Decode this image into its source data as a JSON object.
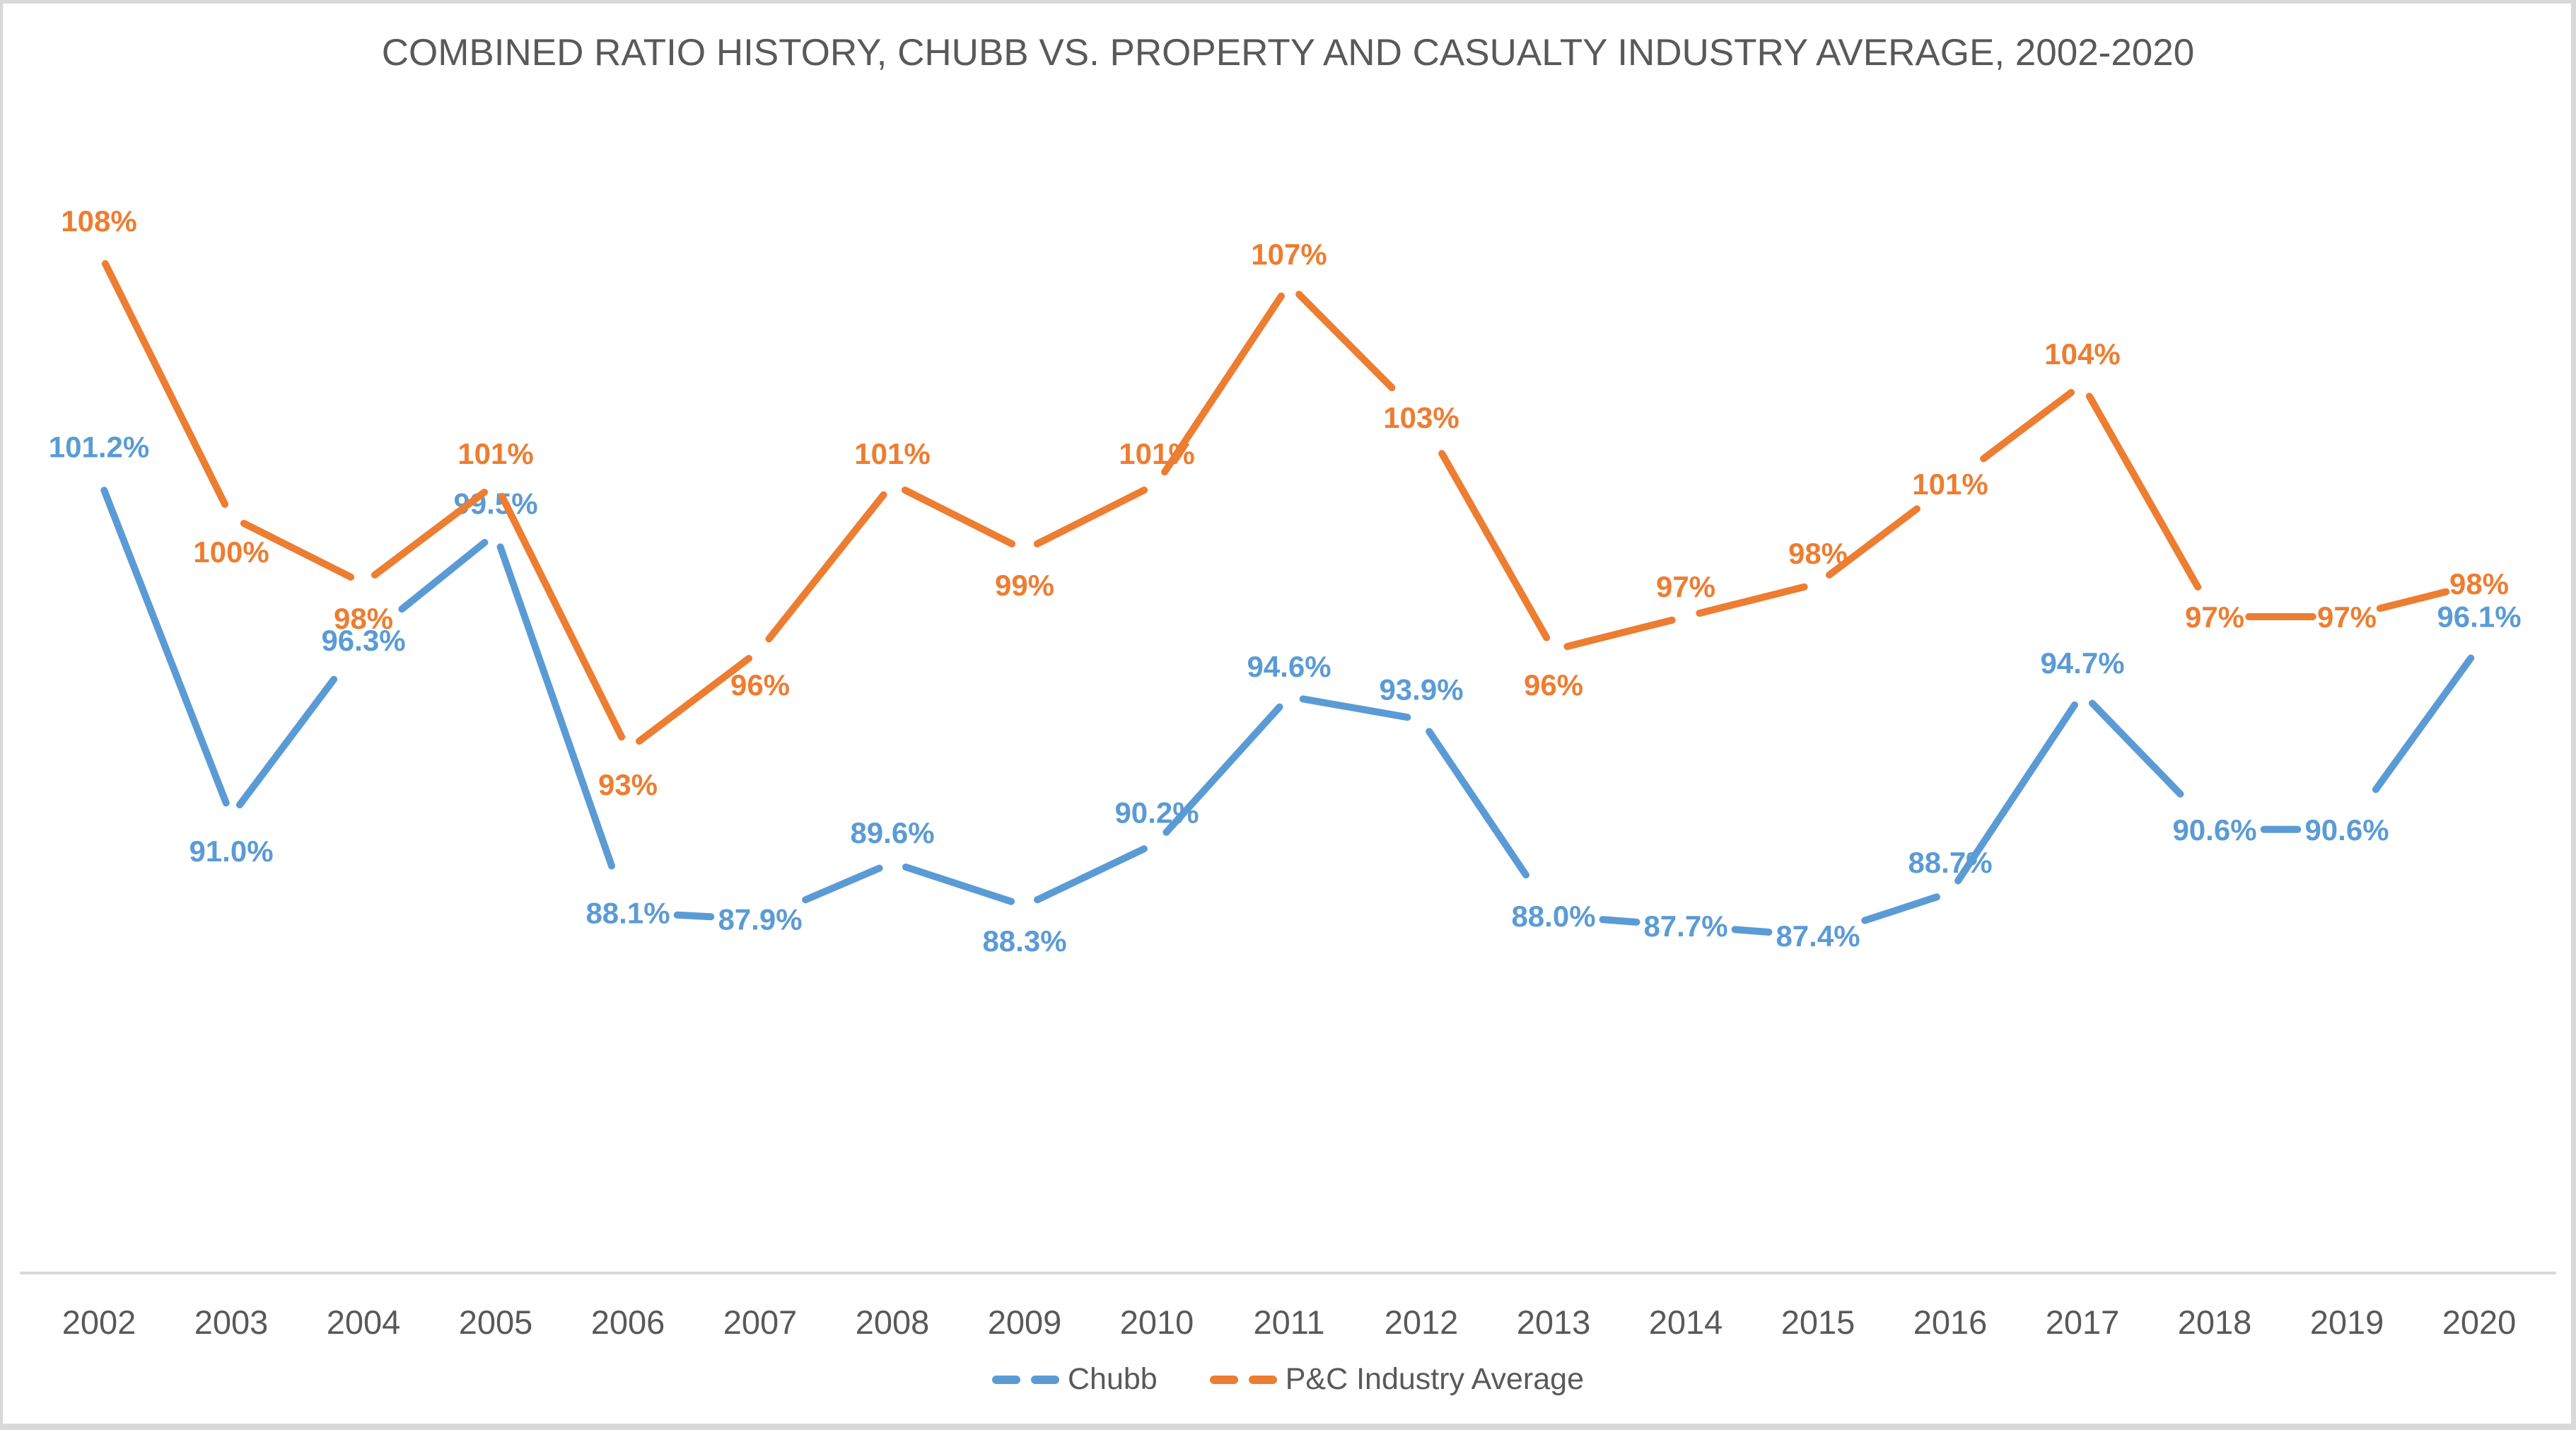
{
  "chart_data": {
    "type": "line",
    "title": "COMBINED RATIO HISTORY, CHUBB VS. PROPERTY AND CASUALTY INDUSTRY AVERAGE, 2002-2020",
    "categories": [
      "2002",
      "2003",
      "2004",
      "2005",
      "2006",
      "2007",
      "2008",
      "2009",
      "2010",
      "2011",
      "2012",
      "2013",
      "2014",
      "2015",
      "2016",
      "2017",
      "2018",
      "2019",
      "2020"
    ],
    "series": [
      {
        "name": "Chubb",
        "color": "#5B9BD5",
        "line_style": "dashed",
        "values": [
          101.2,
          91.0,
          96.3,
          99.5,
          88.1,
          87.9,
          89.6,
          88.3,
          90.2,
          94.6,
          93.9,
          88.0,
          87.7,
          87.4,
          88.7,
          94.7,
          90.6,
          90.6,
          96.1
        ],
        "labels": [
          "101.2%",
          "91.0%",
          "96.3%",
          "99.5%",
          "88.1%",
          "87.9%",
          "89.6%",
          "88.3%",
          "90.2%",
          "94.6%",
          "93.9%",
          "88.0%",
          "87.7%",
          "87.4%",
          "88.7%",
          "94.7%",
          "90.6%",
          "90.6%",
          "96.1%"
        ],
        "label_positions": [
          "above",
          "below",
          "center",
          "above",
          "center",
          "center",
          "above",
          "below",
          "above",
          "above",
          "above",
          "center",
          "center",
          "center",
          "above",
          "above",
          "center",
          "center",
          "above"
        ]
      },
      {
        "name": "P&C Industry Average",
        "color": "#ED7D31",
        "line_style": "dashed",
        "values": [
          108,
          100,
          98,
          101,
          93,
          96,
          101,
          99,
          101,
          107,
          103,
          96,
          97,
          98,
          101,
          104,
          97,
          97,
          98
        ],
        "labels": [
          "108%",
          "100%",
          "98%",
          "101%",
          "93%",
          "96%",
          "101%",
          "99%",
          "101%",
          "107%",
          "103%",
          "96%",
          "97%",
          "98%",
          "101%",
          "104%",
          "97%",
          "97%",
          "98%"
        ],
        "label_positions": [
          "above",
          "below",
          "below",
          "above",
          "below",
          "below",
          "above",
          "below",
          "above",
          "above",
          "center",
          "below",
          "above",
          "above",
          "center",
          "above",
          "center",
          "center",
          "center"
        ]
      }
    ],
    "xlabel": "",
    "ylabel": "",
    "ylim": [
      78,
      110
    ],
    "y_axis_visible": false,
    "grid": false,
    "data_labels_visible": true,
    "legend_position": "bottom-center",
    "axis_line_color": "#D9D9D9",
    "axis_label_color": "#595959",
    "title_color": "#595959",
    "background_color": "#FFFFFF"
  }
}
